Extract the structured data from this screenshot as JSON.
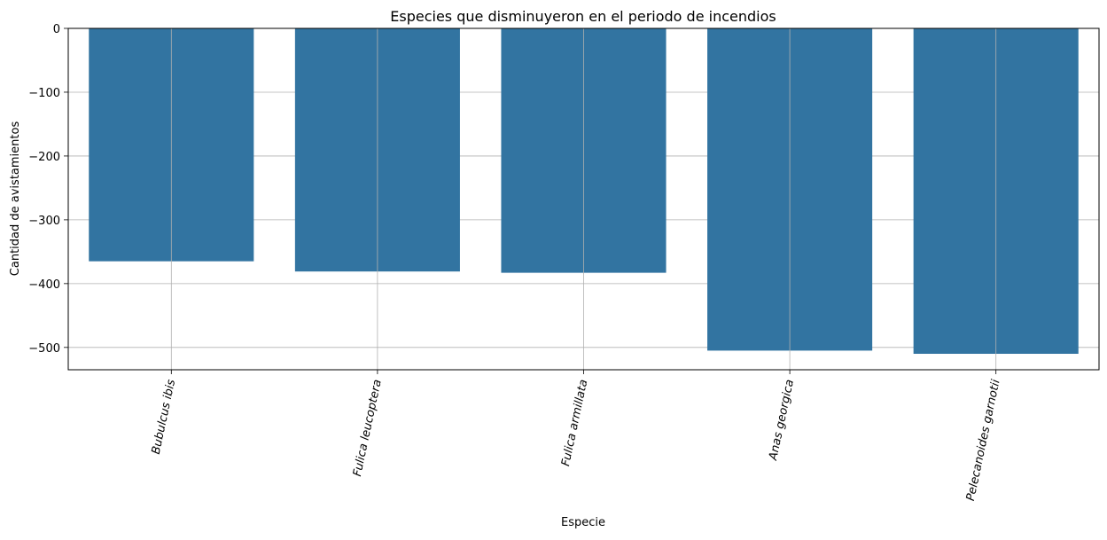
{
  "chart_data": {
    "type": "bar",
    "title": "Especies que disminuyeron en el periodo de incendios",
    "xlabel": "Especie",
    "ylabel": "Cantidad de avistamientos",
    "categories": [
      "Bubulcus ibis",
      "Fulica leucoptera",
      "Fulica armillata",
      "Anas georgica",
      "Pelecanoides garnotii"
    ],
    "values": [
      -365,
      -381,
      -383,
      -505,
      -510
    ],
    "ylim": [
      -535,
      0
    ],
    "yticks": [
      0,
      -100,
      -200,
      -300,
      -400,
      -500
    ],
    "ytick_labels": [
      "0",
      "−100",
      "−200",
      "−300",
      "−400",
      "−500"
    ],
    "grid": true,
    "x_tick_rotation_deg": -78,
    "bar_color": "#3274a1",
    "grid_color": "#b0b0b0"
  }
}
